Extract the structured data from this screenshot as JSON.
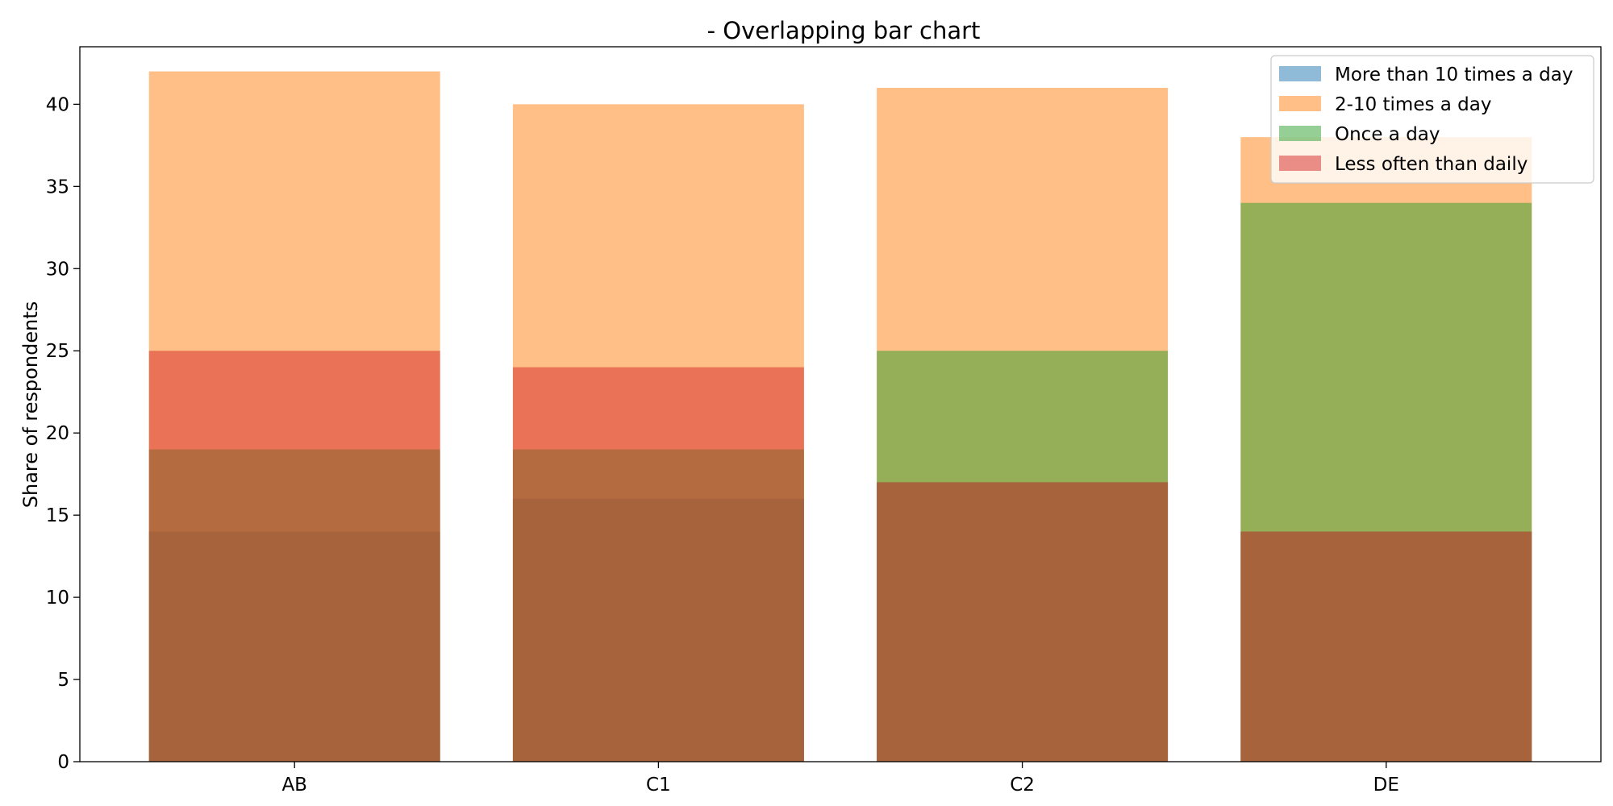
{
  "chart_data": {
    "type": "bar",
    "title": "- Overlapping bar chart",
    "xlabel": "",
    "ylabel": "Share of respondents",
    "categories": [
      "AB",
      "C1",
      "C2",
      "DE"
    ],
    "ylim": [
      0,
      43.5
    ],
    "yticks": [
      0,
      5,
      10,
      15,
      20,
      25,
      30,
      35,
      40
    ],
    "grid": false,
    "legend_position": "top-right",
    "overlap": true,
    "series": [
      {
        "name": "More than 10 times a day",
        "color": "#1f77b4",
        "opacity": 0.5,
        "values": [
          14,
          16,
          17,
          14
        ]
      },
      {
        "name": "2-10 times a day",
        "color": "#ff7f0e",
        "opacity": 0.5,
        "values": [
          42,
          40,
          41,
          38
        ]
      },
      {
        "name": "Once a day",
        "color": "#2ca02c",
        "opacity": 0.5,
        "values": [
          19,
          19,
          25,
          34
        ]
      },
      {
        "name": "Less often than daily",
        "color": "#d62728",
        "opacity": 0.5,
        "values": [
          25,
          24,
          17,
          14
        ]
      }
    ]
  }
}
